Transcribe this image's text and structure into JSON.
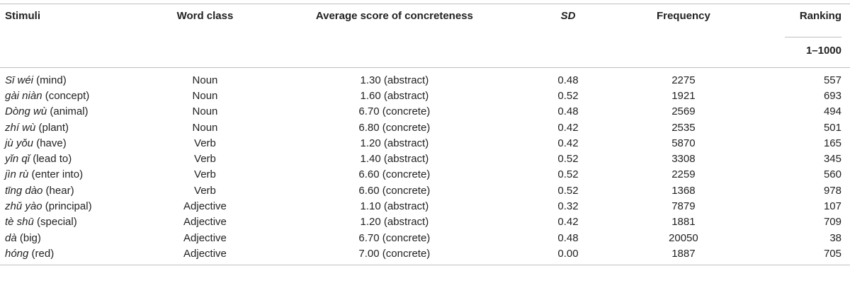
{
  "headers": {
    "stimuli": "Stimuli",
    "word_class": "Word class",
    "average_score": "Average score of concreteness",
    "sd": "SD",
    "frequency": "Frequency",
    "ranking": "Ranking",
    "ranking_sub": "1–1000"
  },
  "rows": [
    {
      "pinyin": "Sī wéi",
      "gloss": " (mind)",
      "word_class": "Noun",
      "avg": "1.30 (abstract)",
      "sd": "0.48",
      "freq": "2275",
      "rank": "557"
    },
    {
      "pinyin": "gài niàn",
      "gloss": " (concept)",
      "word_class": "Noun",
      "avg": "1.60 (abstract)",
      "sd": "0.52",
      "freq": "1921",
      "rank": "693"
    },
    {
      "pinyin": "Dòng wù",
      "gloss": " (animal)",
      "word_class": "Noun",
      "avg": "6.70 (concrete)",
      "sd": "0.48",
      "freq": "2569",
      "rank": "494"
    },
    {
      "pinyin": "zhí wù",
      "gloss": " (plant)",
      "word_class": "Noun",
      "avg": "6.80 (concrete)",
      "sd": "0.42",
      "freq": "2535",
      "rank": "501"
    },
    {
      "pinyin": "jù yǒu",
      "gloss": " (have)",
      "word_class": "Verb",
      "avg": "1.20 (abstract)",
      "sd": "0.42",
      "freq": "5870",
      "rank": "165"
    },
    {
      "pinyin": "yǐn qǐ",
      "gloss": " (lead to)",
      "word_class": "Verb",
      "avg": "1.40 (abstract)",
      "sd": "0.52",
      "freq": "3308",
      "rank": "345"
    },
    {
      "pinyin": "jìn rù",
      "gloss": " (enter into)",
      "word_class": "Verb",
      "avg": "6.60 (concrete)",
      "sd": "0.52",
      "freq": "2259",
      "rank": "560"
    },
    {
      "pinyin": "tīng dào",
      "gloss": " (hear)",
      "word_class": "Verb",
      "avg": "6.60 (concrete)",
      "sd": "0.52",
      "freq": "1368",
      "rank": "978"
    },
    {
      "pinyin": "zhǔ yào",
      "gloss": " (principal)",
      "word_class": "Adjective",
      "avg": "1.10 (abstract)",
      "sd": "0.32",
      "freq": "7879",
      "rank": "107"
    },
    {
      "pinyin": "tè shū",
      "gloss": " (special)",
      "word_class": "Adjective",
      "avg": "1.20 (abstract)",
      "sd": "0.42",
      "freq": "1881",
      "rank": "709"
    },
    {
      "pinyin": "dà",
      "gloss": " (big)",
      "word_class": "Adjective",
      "avg": "6.70 (concrete)",
      "sd": "0.48",
      "freq": "20050",
      "rank": "38"
    },
    {
      "pinyin": "hóng",
      "gloss": " (red)",
      "word_class": "Adjective",
      "avg": "7.00 (concrete)",
      "sd": "0.00",
      "freq": "1887",
      "rank": "705"
    }
  ]
}
